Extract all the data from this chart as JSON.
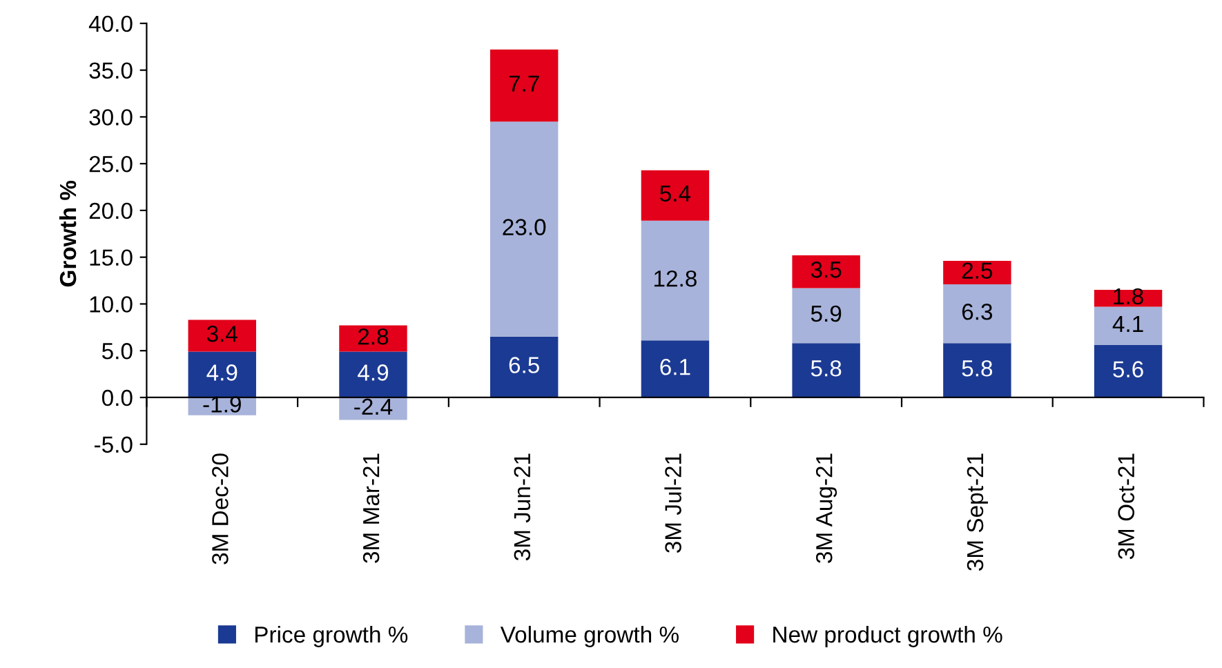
{
  "chart_data": {
    "type": "bar",
    "stacked": true,
    "ylabel": "Growth %",
    "categories": [
      "3M Dec-20",
      "3M Mar-21",
      "3M Jun-21",
      "3M Jul-21",
      "3M Aug-21",
      "3M Sept-21",
      "3M Oct-21"
    ],
    "series": [
      {
        "name": "Price growth %",
        "color": "#1b3a93",
        "values": [
          4.9,
          4.9,
          6.5,
          6.1,
          5.8,
          5.8,
          5.6
        ],
        "value_labels": [
          "4.9",
          "4.9",
          "6.5",
          "6.1",
          "5.8",
          "5.8",
          "5.6"
        ]
      },
      {
        "name": "Volume growth %",
        "color": "#a7b3da",
        "values": [
          -1.9,
          -2.4,
          23.0,
          12.8,
          5.9,
          6.3,
          4.1
        ],
        "value_labels": [
          "-1.9",
          "-2.4",
          "23.0",
          "12.8",
          "5.9",
          "6.3",
          "4.1"
        ]
      },
      {
        "name": "New product growth %",
        "color": "#e2001a",
        "values": [
          3.4,
          2.8,
          7.7,
          5.4,
          3.5,
          2.5,
          1.8
        ],
        "value_labels": [
          "3.4",
          "2.8",
          "7.7",
          "5.4",
          "3.5",
          "2.5",
          "1.8"
        ]
      }
    ],
    "ylim": [
      -5,
      40
    ],
    "yticks": [
      {
        "value": -5,
        "label": "-5.0"
      },
      {
        "value": 0,
        "label": "0.0"
      },
      {
        "value": 5,
        "label": "5.0"
      },
      {
        "value": 10,
        "label": "10.0"
      },
      {
        "value": 15,
        "label": "15.0"
      },
      {
        "value": 20,
        "label": "20.0"
      },
      {
        "value": 25,
        "label": "25.0"
      },
      {
        "value": 30,
        "label": "30.0"
      },
      {
        "value": 35,
        "label": "35.0"
      },
      {
        "value": 40,
        "label": "40.0"
      }
    ],
    "grid": false,
    "legend": "bottom"
  }
}
